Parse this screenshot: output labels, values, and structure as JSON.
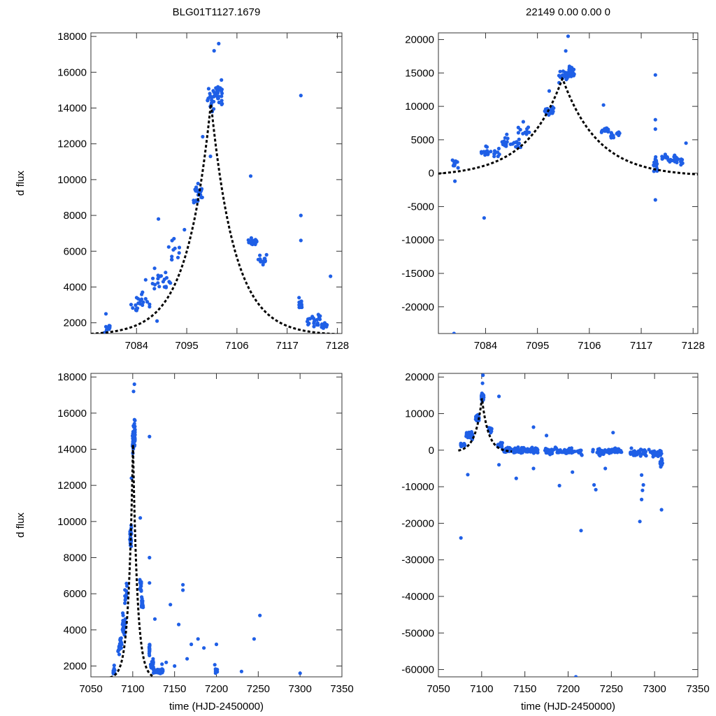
{
  "figure": {
    "ylabel": "d flux",
    "xlabel": "time (HJD-2450000)"
  },
  "colors": {
    "points": "#1f5fe6",
    "model": "#000000",
    "frame": "#333333"
  },
  "chart_data": [
    {
      "type": "scatter",
      "panel": "top-left",
      "title": "BLG01T1127.1679",
      "xlabel": "",
      "ylabel": "d flux",
      "xlim": [
        7074,
        7129
      ],
      "ylim": [
        1400,
        18200
      ],
      "xticks": [
        7084,
        7095,
        7106,
        7117,
        7128
      ],
      "yticks": [
        2000,
        4000,
        6000,
        8000,
        10000,
        12000,
        14000,
        16000,
        18000
      ],
      "model": {
        "t0": 7100.3,
        "peak": 14300,
        "base": 1300,
        "tau": 5.2,
        "t_start": 7074,
        "t_end": 7129
      },
      "clusters": [
        {
          "x": 7077.5,
          "span": 0.8,
          "n": 10,
          "y": 1700,
          "spread": 450
        },
        {
          "x": 7083.5,
          "span": 1.2,
          "n": 8,
          "y": 2900,
          "spread": 350
        },
        {
          "x": 7085.5,
          "span": 1.5,
          "n": 14,
          "y": 3300,
          "spread": 600
        },
        {
          "x": 7089.5,
          "span": 2.0,
          "n": 22,
          "y": 4300,
          "spread": 900
        },
        {
          "x": 7092.0,
          "span": 1.4,
          "n": 10,
          "y": 6000,
          "spread": 700
        },
        {
          "x": 7097.5,
          "span": 1.0,
          "n": 22,
          "y": 9200,
          "spread": 900
        },
        {
          "x": 7100.5,
          "span": 1.0,
          "n": 24,
          "y": 14500,
          "spread": 1200
        },
        {
          "x": 7102.2,
          "span": 0.6,
          "n": 22,
          "y": 14800,
          "spread": 1100
        },
        {
          "x": 7109.5,
          "span": 1.0,
          "n": 16,
          "y": 6500,
          "spread": 500
        },
        {
          "x": 7111.5,
          "span": 1.0,
          "n": 14,
          "y": 5500,
          "spread": 450
        },
        {
          "x": 7120.0,
          "span": 0.4,
          "n": 18,
          "y": 3000,
          "spread": 600
        },
        {
          "x": 7123.0,
          "span": 1.6,
          "n": 22,
          "y": 2100,
          "spread": 450
        },
        {
          "x": 7125.0,
          "span": 0.8,
          "n": 10,
          "y": 1900,
          "spread": 400
        }
      ],
      "points": [
        [
          7077.3,
          2500
        ],
        [
          7098.5,
          12400
        ],
        [
          7101.0,
          17200
        ],
        [
          7102.0,
          17600
        ],
        [
          7100.2,
          11300
        ],
        [
          7088.8,
          7800
        ],
        [
          7094.5,
          7200
        ],
        [
          7109.0,
          10200
        ],
        [
          7120.0,
          14700
        ],
        [
          7120.0,
          8000
        ],
        [
          7120.0,
          6600
        ],
        [
          7126.5,
          4600
        ],
        [
          7088.5,
          2100
        ],
        [
          7086.0,
          4400
        ],
        [
          7092.2,
          6700
        ]
      ]
    },
    {
      "type": "scatter",
      "panel": "top-right",
      "title": "22149  0.00  0.00  0",
      "xlabel": "",
      "ylabel": "",
      "xlim": [
        7074,
        7129
      ],
      "ylim": [
        -24000,
        21000
      ],
      "xticks": [
        7084,
        7095,
        7106,
        7117,
        7128
      ],
      "yticks": [
        -20000,
        -15000,
        -10000,
        -5000,
        0,
        5000,
        10000,
        15000,
        20000
      ],
      "model": {
        "t0": 7100.3,
        "peak": 14200,
        "base": -500,
        "tau": 7.5,
        "t_start": 7074,
        "t_end": 7129
      },
      "clusters": [
        {
          "x": 7077.5,
          "span": 0.8,
          "n": 12,
          "y": 1500,
          "spread": 900
        },
        {
          "x": 7083.5,
          "span": 1.2,
          "n": 8,
          "y": 2800,
          "spread": 800
        },
        {
          "x": 7085.5,
          "span": 1.5,
          "n": 14,
          "y": 3200,
          "spread": 1000
        },
        {
          "x": 7089.5,
          "span": 2.0,
          "n": 22,
          "y": 4500,
          "spread": 1300
        },
        {
          "x": 7092.0,
          "span": 1.4,
          "n": 10,
          "y": 6200,
          "spread": 1000
        },
        {
          "x": 7097.5,
          "span": 1.0,
          "n": 22,
          "y": 9300,
          "spread": 1300
        },
        {
          "x": 7100.5,
          "span": 1.0,
          "n": 24,
          "y": 14500,
          "spread": 1300
        },
        {
          "x": 7102.2,
          "span": 0.6,
          "n": 22,
          "y": 15200,
          "spread": 1100
        },
        {
          "x": 7109.5,
          "span": 1.0,
          "n": 16,
          "y": 6500,
          "spread": 600
        },
        {
          "x": 7111.5,
          "span": 1.0,
          "n": 14,
          "y": 5700,
          "spread": 600
        },
        {
          "x": 7120.0,
          "span": 0.4,
          "n": 20,
          "y": 1500,
          "spread": 1800
        },
        {
          "x": 7123.0,
          "span": 1.6,
          "n": 22,
          "y": 2200,
          "spread": 900
        },
        {
          "x": 7125.0,
          "span": 0.8,
          "n": 10,
          "y": 1800,
          "spread": 800
        }
      ],
      "points": [
        [
          7077.3,
          -24000
        ],
        [
          7077.5,
          -1200
        ],
        [
          7083.7,
          -6700
        ],
        [
          7101.5,
          20500
        ],
        [
          7101.0,
          18300
        ],
        [
          7120.0,
          14700
        ],
        [
          7120.0,
          8000
        ],
        [
          7120.0,
          6600
        ],
        [
          7120.0,
          -4000
        ],
        [
          7109.0,
          10200
        ],
        [
          7097.5,
          12300
        ],
        [
          7126.5,
          4500
        ],
        [
          7092.0,
          7700
        ],
        [
          7088.5,
          5800
        ]
      ]
    },
    {
      "type": "scatter",
      "panel": "bottom-left",
      "title": "",
      "xlabel": "time (HJD-2450000)",
      "ylabel": "d flux",
      "xlim": [
        7050,
        7350
      ],
      "ylim": [
        1400,
        18200
      ],
      "xticks": [
        7050,
        7100,
        7150,
        7200,
        7250,
        7300,
        7350
      ],
      "yticks": [
        2000,
        4000,
        6000,
        8000,
        10000,
        12000,
        14000,
        16000,
        18000
      ],
      "model": {
        "t0": 7100.3,
        "peak": 14300,
        "base": 1300,
        "tau": 5.2,
        "t_start": 7073,
        "t_end": 7124
      },
      "clusters": [
        {
          "x": 7077.5,
          "span": 1,
          "n": 10,
          "y": 1700,
          "spread": 450
        },
        {
          "x": 7083.5,
          "span": 1.2,
          "n": 8,
          "y": 2900,
          "spread": 350
        },
        {
          "x": 7085.5,
          "span": 1.5,
          "n": 14,
          "y": 3300,
          "spread": 600
        },
        {
          "x": 7089.5,
          "span": 2.0,
          "n": 22,
          "y": 4300,
          "spread": 900
        },
        {
          "x": 7092.0,
          "span": 1.4,
          "n": 10,
          "y": 6000,
          "spread": 700
        },
        {
          "x": 7097.5,
          "span": 1.0,
          "n": 22,
          "y": 9200,
          "spread": 900
        },
        {
          "x": 7100.5,
          "span": 1.0,
          "n": 24,
          "y": 14500,
          "spread": 1200
        },
        {
          "x": 7102.2,
          "span": 0.6,
          "n": 22,
          "y": 14800,
          "spread": 1100
        },
        {
          "x": 7109.5,
          "span": 1.0,
          "n": 16,
          "y": 6500,
          "spread": 500
        },
        {
          "x": 7111.5,
          "span": 1.0,
          "n": 14,
          "y": 5500,
          "spread": 450
        },
        {
          "x": 7120.0,
          "span": 0.4,
          "n": 18,
          "y": 3000,
          "spread": 600
        },
        {
          "x": 7123.0,
          "span": 1.6,
          "n": 22,
          "y": 2100,
          "spread": 450
        },
        {
          "x": 7130.0,
          "span": 6,
          "n": 30,
          "y": 1700,
          "spread": 250
        },
        {
          "x": 7200.0,
          "span": 2,
          "n": 10,
          "y": 1800,
          "spread": 350
        }
      ],
      "points": [
        [
          7101.0,
          17200
        ],
        [
          7102.0,
          17600
        ],
        [
          7098.5,
          12400
        ],
        [
          7109.0,
          10200
        ],
        [
          7120.0,
          14700
        ],
        [
          7120.0,
          8000
        ],
        [
          7120.0,
          6600
        ],
        [
          7126.5,
          4600
        ],
        [
          7160.0,
          6500
        ],
        [
          7160.0,
          6200
        ],
        [
          7155.0,
          4300
        ],
        [
          7145.0,
          5400
        ],
        [
          7178.0,
          3500
        ],
        [
          7185.0,
          3000
        ],
        [
          7170.0,
          3200
        ],
        [
          7165.0,
          2400
        ],
        [
          7200.0,
          3200
        ],
        [
          7245.0,
          3500
        ],
        [
          7252.0,
          4800
        ],
        [
          7230.0,
          1700
        ],
        [
          7300.0,
          1600
        ],
        [
          7150.0,
          2000
        ],
        [
          7140.0,
          2200
        ],
        [
          7135.0,
          2100
        ]
      ]
    },
    {
      "type": "scatter",
      "panel": "bottom-right",
      "title": "",
      "xlabel": "time (HJD-2450000)",
      "ylabel": "",
      "xlim": [
        7050,
        7350
      ],
      "ylim": [
        -62000,
        21000
      ],
      "xticks": [
        7050,
        7100,
        7150,
        7200,
        7250,
        7300,
        7350
      ],
      "yticks": [
        -60000,
        -50000,
        -40000,
        -30000,
        -20000,
        -10000,
        0,
        10000,
        20000
      ],
      "model": {
        "t0": 7100.3,
        "peak": 14200,
        "base": -500,
        "tau": 7.5,
        "t_start": 7073,
        "t_end": 7135
      },
      "clusters": [
        {
          "x": 7078,
          "span": 3,
          "n": 14,
          "y": 1500,
          "spread": 1200
        },
        {
          "x": 7086,
          "span": 4,
          "n": 20,
          "y": 4000,
          "spread": 1500
        },
        {
          "x": 7095,
          "span": 2,
          "n": 16,
          "y": 8500,
          "spread": 1800
        },
        {
          "x": 7101,
          "span": 1.5,
          "n": 30,
          "y": 14500,
          "spread": 1800
        },
        {
          "x": 7110,
          "span": 2,
          "n": 16,
          "y": 5500,
          "spread": 1000
        },
        {
          "x": 7121,
          "span": 3,
          "n": 20,
          "y": 1500,
          "spread": 1300
        },
        {
          "x": 7145,
          "span": 20,
          "n": 80,
          "y": 0,
          "spread": 1200
        },
        {
          "x": 7195,
          "span": 22,
          "n": 70,
          "y": -300,
          "spread": 1300
        },
        {
          "x": 7245,
          "span": 18,
          "n": 60,
          "y": -300,
          "spread": 1300
        },
        {
          "x": 7290,
          "span": 18,
          "n": 70,
          "y": -800,
          "spread": 1400
        },
        {
          "x": 7308,
          "span": 1.5,
          "n": 12,
          "y": -3500,
          "spread": 2000
        }
      ],
      "points": [
        [
          7101.5,
          20500
        ],
        [
          7101.0,
          18300
        ],
        [
          7076.0,
          -24000
        ],
        [
          7084.0,
          -6700
        ],
        [
          7120.0,
          14700
        ],
        [
          7120.0,
          -4000
        ],
        [
          7140.0,
          -7700
        ],
        [
          7160.0,
          -5000
        ],
        [
          7190.0,
          -9700
        ],
        [
          7205.0,
          -6000
        ],
        [
          7215.0,
          -22000
        ],
        [
          7230.0,
          -9500
        ],
        [
          7232.0,
          -10800
        ],
        [
          7283.0,
          -19500
        ],
        [
          7285.0,
          -13500
        ],
        [
          7286.0,
          -11000
        ],
        [
          7287.0,
          -9500
        ],
        [
          7308.0,
          -16300
        ],
        [
          7209.0,
          -62000
        ],
        [
          7160.0,
          6300
        ],
        [
          7252.0,
          4800
        ],
        [
          7175.0,
          4000
        ],
        [
          7285.0,
          -6800
        ],
        [
          7243.0,
          -5000
        ]
      ]
    }
  ]
}
